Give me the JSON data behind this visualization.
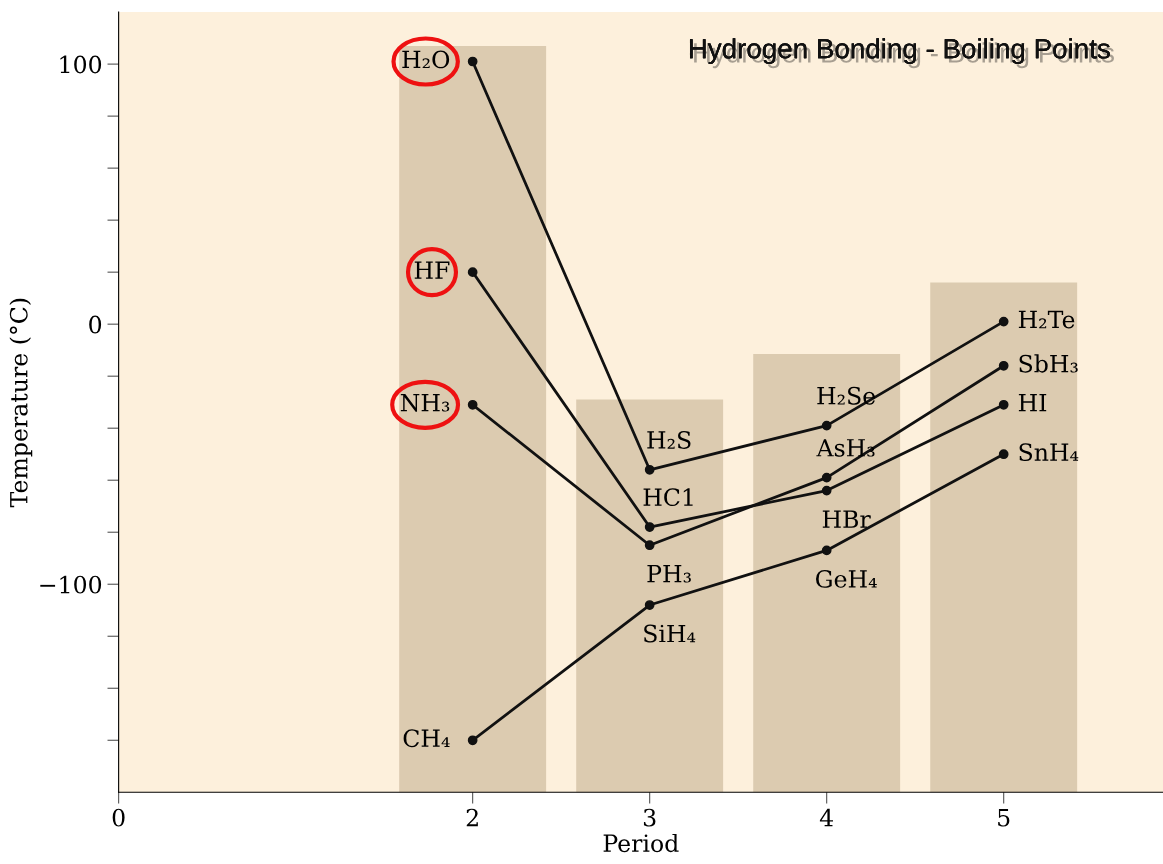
{
  "chart_data": {
    "type": "line",
    "title": "Hydrogen Bonding - Boiling Points",
    "xlabel": "Period",
    "ylabel": "Temperature (°C)",
    "xlim": [
      0,
      5.9
    ],
    "xticks": [
      0,
      2,
      3,
      4,
      5
    ],
    "ylim": [
      -180,
      120
    ],
    "yticks": [
      {
        "value": -160,
        "label": null
      },
      {
        "value": -140,
        "label": null
      },
      {
        "value": -120,
        "label": null
      },
      -100,
      {
        "value": -80,
        "label": null
      },
      {
        "value": -60,
        "label": null
      },
      {
        "value": -40,
        "label": null
      },
      {
        "value": -20,
        "label": null
      },
      0,
      {
        "value": 20,
        "label": null
      },
      {
        "value": 40,
        "label": null
      },
      {
        "value": 60,
        "label": null
      },
      {
        "value": 80,
        "label": null
      },
      100
    ],
    "marker": "circle",
    "line_style": "solid",
    "grid": false,
    "legend": false,
    "series": [
      {
        "type": "bar",
        "color": "#dccbb0",
        "x": [
          2,
          3,
          4,
          5
        ],
        "base": [
          -180,
          -180,
          -180,
          -180
        ],
        "values": [
          287,
          151,
          168.5,
          196
        ]
      },
      {
        "color": "#111111",
        "x": [
          2,
          3,
          4,
          5
        ],
        "values": [
          -160,
          -108,
          -87,
          -50
        ]
      },
      {
        "color": "#111111",
        "x": [
          2,
          3,
          4,
          5
        ],
        "values": [
          -31,
          -85,
          -59,
          -16
        ]
      },
      {
        "color": "#111111",
        "x": [
          2,
          3,
          4,
          5
        ],
        "values": [
          101,
          -56,
          -39,
          1
        ]
      },
      {
        "color": "#111111",
        "x": [
          2,
          3,
          4,
          5
        ],
        "values": [
          20,
          -78,
          -64,
          -31
        ]
      }
    ],
    "annotations": [
      {
        "text": "H₂O",
        "x": 2,
        "y": 101
      },
      {
        "text": "HF",
        "x": 2,
        "y": 20
      },
      {
        "text": "NH₃",
        "x": 2,
        "y": -31
      },
      {
        "text": "CH₄",
        "x": 2,
        "y": -160
      },
      {
        "text": "H₂S",
        "x": 3,
        "y": -56
      },
      {
        "text": "HC1",
        "x": 3,
        "y": -78
      },
      {
        "text": "PH₃",
        "x": 3,
        "y": -85
      },
      {
        "text": "SiH₄",
        "x": 3,
        "y": -108
      },
      {
        "text": "H₂Se",
        "x": 4,
        "y": -39
      },
      {
        "text": "AsH₃",
        "x": 4,
        "y": -59
      },
      {
        "text": "HBr",
        "x": 4,
        "y": -64
      },
      {
        "text": "GeH₄",
        "x": 4,
        "y": -87
      },
      {
        "text": "H₂Te",
        "x": 5,
        "y": 1
      },
      {
        "text": "SbH₃",
        "x": 5,
        "y": -16
      },
      {
        "text": "HI",
        "x": 5,
        "y": -31
      },
      {
        "text": "SnH₄",
        "x": 5,
        "y": -50
      }
    ]
  }
}
